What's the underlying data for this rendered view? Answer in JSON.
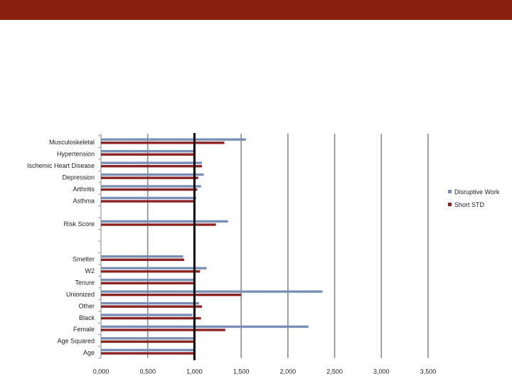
{
  "chart_data": {
    "type": "bar",
    "orientation": "horizontal",
    "title": "",
    "xlabel": "",
    "ylabel": "",
    "xlim": [
      0,
      3.5
    ],
    "grid": true,
    "legend_position": "right",
    "reference_line": 1.0,
    "tick_values": [
      0,
      0.5,
      1.0,
      1.5,
      2.0,
      2.5,
      3.0,
      3.5
    ],
    "tick_labels": [
      "0,000",
      "0,500",
      "1,000",
      "1,500",
      "2,000",
      "2,500",
      "3,000",
      "3,500"
    ],
    "categories": [
      "Musculoskeletal",
      "Hypertension",
      "Ischemic Heart Disease",
      "Depression",
      "Arthritis",
      "Asthma",
      "",
      "Risk Score",
      "",
      "",
      "Smelter",
      "W2",
      "Tenure",
      "Unionized",
      "Other",
      "Black",
      "Female",
      "Age Squared",
      "Age"
    ],
    "series": [
      {
        "name": "Disruptive Work",
        "color": "#7a8fb5",
        "values": [
          1.55,
          1.01,
          1.08,
          1.1,
          1.07,
          1.02,
          null,
          1.36,
          null,
          null,
          0.88,
          1.13,
          1.0,
          2.37,
          1.05,
          0.98,
          2.22,
          1.0,
          1.0
        ]
      },
      {
        "name": "Short STD",
        "color": "#8b2323",
        "values": [
          1.32,
          0.99,
          1.08,
          1.04,
          1.03,
          1.0,
          null,
          1.23,
          null,
          null,
          0.89,
          1.06,
          1.0,
          1.5,
          1.08,
          1.07,
          1.33,
          1.0,
          1.0
        ]
      }
    ]
  }
}
